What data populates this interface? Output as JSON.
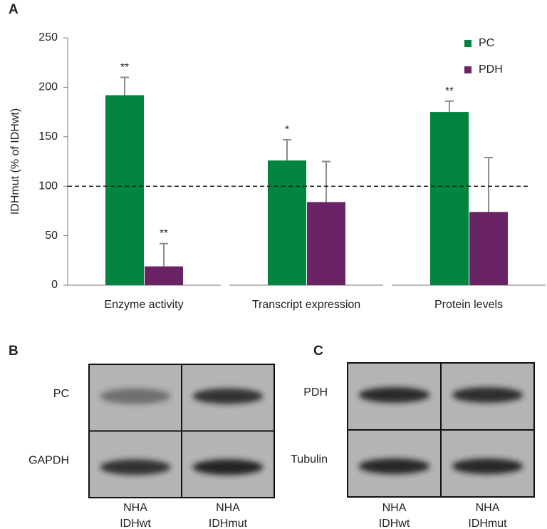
{
  "panel_labels": [
    "A",
    "B",
    "C"
  ],
  "chart_data": {
    "type": "bar",
    "y_label": "IDHmut (% of IDHwt)",
    "categories": [
      "Enzyme activity",
      "Transcript expression",
      "Protein levels"
    ],
    "series": [
      {
        "name": "PC",
        "color": "#00843f",
        "values": [
          192,
          126,
          175
        ],
        "errors": [
          18,
          21,
          11
        ],
        "significance": [
          "**",
          "*",
          "**"
        ]
      },
      {
        "name": "PDH",
        "color": "#6a2466",
        "values": [
          19,
          84,
          74
        ],
        "errors": [
          23,
          41,
          55
        ],
        "significance": [
          "**",
          null,
          null
        ]
      }
    ],
    "reference_line": 100,
    "ylim": [
      0,
      250
    ],
    "yticks": [
      0,
      50,
      100,
      150,
      200,
      250
    ],
    "error_color": "#8c8c8c",
    "legend": "top-right"
  },
  "blots": [
    {
      "rows": [
        "PC",
        "GAPDH"
      ],
      "lanes": [
        [
          "NHA",
          "IDHwt"
        ],
        [
          "NHA",
          "IDHmut"
        ]
      ]
    },
    {
      "rows": [
        "PDH",
        "Tubulin"
      ],
      "lanes": [
        [
          "NHA",
          "IDHwt"
        ],
        [
          "NHA",
          "IDHmut"
        ]
      ]
    }
  ]
}
